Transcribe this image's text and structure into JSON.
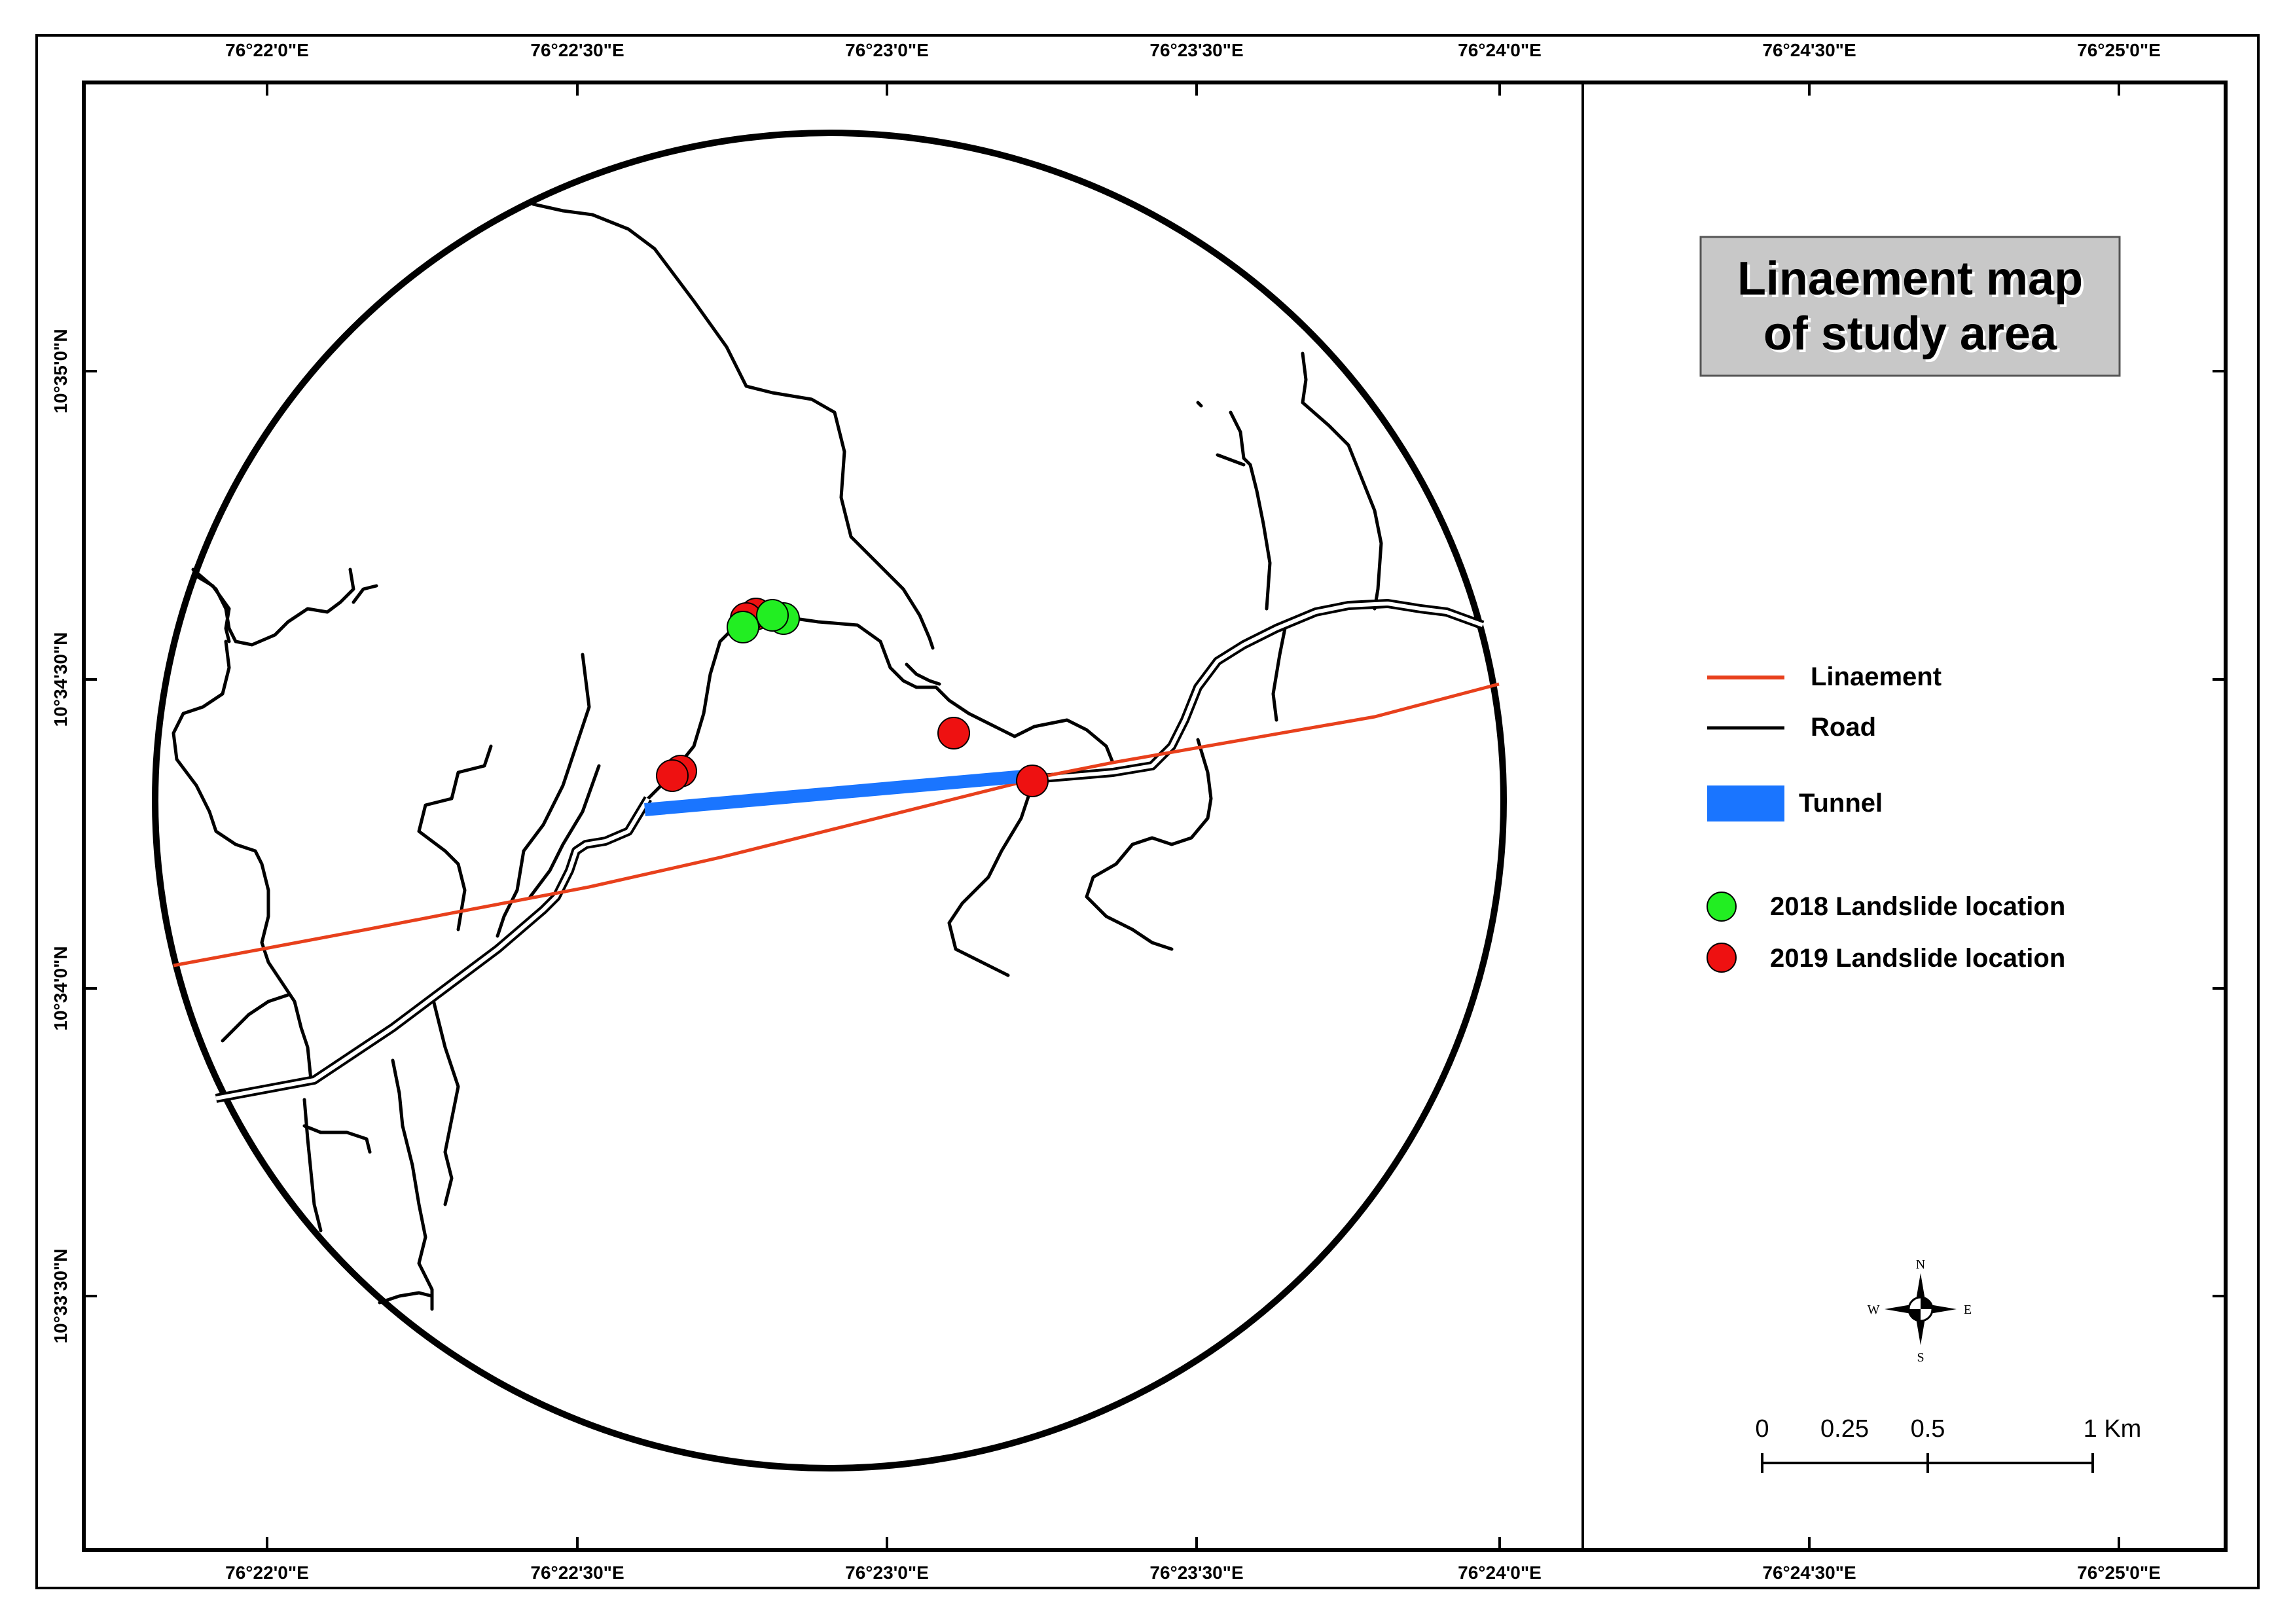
{
  "map": {
    "title_line1": "Linaement  map",
    "title_line2": "of study area",
    "top_ticks": [
      "76°22'0\"E",
      "76°22'30\"E",
      "76°23'0\"E",
      "76°23'30\"E",
      "76°24'0\"E",
      "76°24'30\"E",
      "76°25'0\"E"
    ],
    "bottom_ticks": [
      "76°22'0\"E",
      "76°22'30\"E",
      "76°23'0\"E",
      "76°23'30\"E",
      "76°24'0\"E",
      "76°24'30\"E",
      "76°25'0\"E"
    ],
    "left_ticks": [
      "10°35'0\"N",
      "10°34'30\"N",
      "10°34'0\"N",
      "10°33'30\"N"
    ]
  },
  "legend": {
    "lineament": "Linaement",
    "road": "Road",
    "tunnel": "Tunnel",
    "landslide_2018": "2018 Landslide location",
    "landslide_2019": "2019 Landslide location"
  },
  "scale_bar": {
    "labels": [
      "0",
      "0.25",
      "0.5",
      "1 Km"
    ]
  },
  "compass": {
    "n": "N",
    "s": "S",
    "e": "E",
    "w": "W"
  },
  "colors": {
    "lineament": "#e8401c",
    "road": "#000000",
    "tunnel": "#1a75ff",
    "landslide_2018": "#22ee22",
    "landslide_2019": "#ee1111",
    "title_box": "#c8c8c8"
  }
}
